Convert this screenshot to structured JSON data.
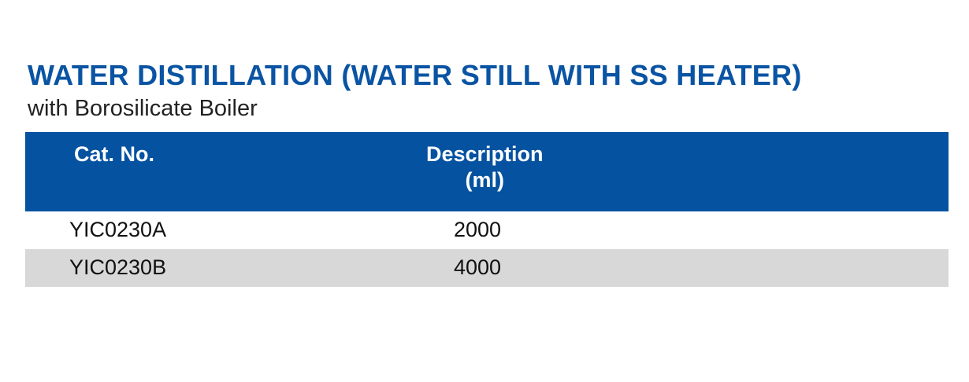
{
  "title": "WATER DISTILLATION (WATER STILL WITH SS HEATER)",
  "subtitle": "with Borosilicate Boiler",
  "table": {
    "headers": {
      "cat_no": "Cat. No.",
      "description_line1": "Description",
      "description_line2": "(ml)"
    },
    "rows": [
      {
        "cat_no": "YIC0230A",
        "description": "2000"
      },
      {
        "cat_no": "YIC0230B",
        "description": "4000"
      }
    ]
  },
  "colors": {
    "title": "#0a54a3",
    "header_background": "#0452a0",
    "header_text": "#ffffff",
    "alt_row_background": "#d8d8d8"
  }
}
